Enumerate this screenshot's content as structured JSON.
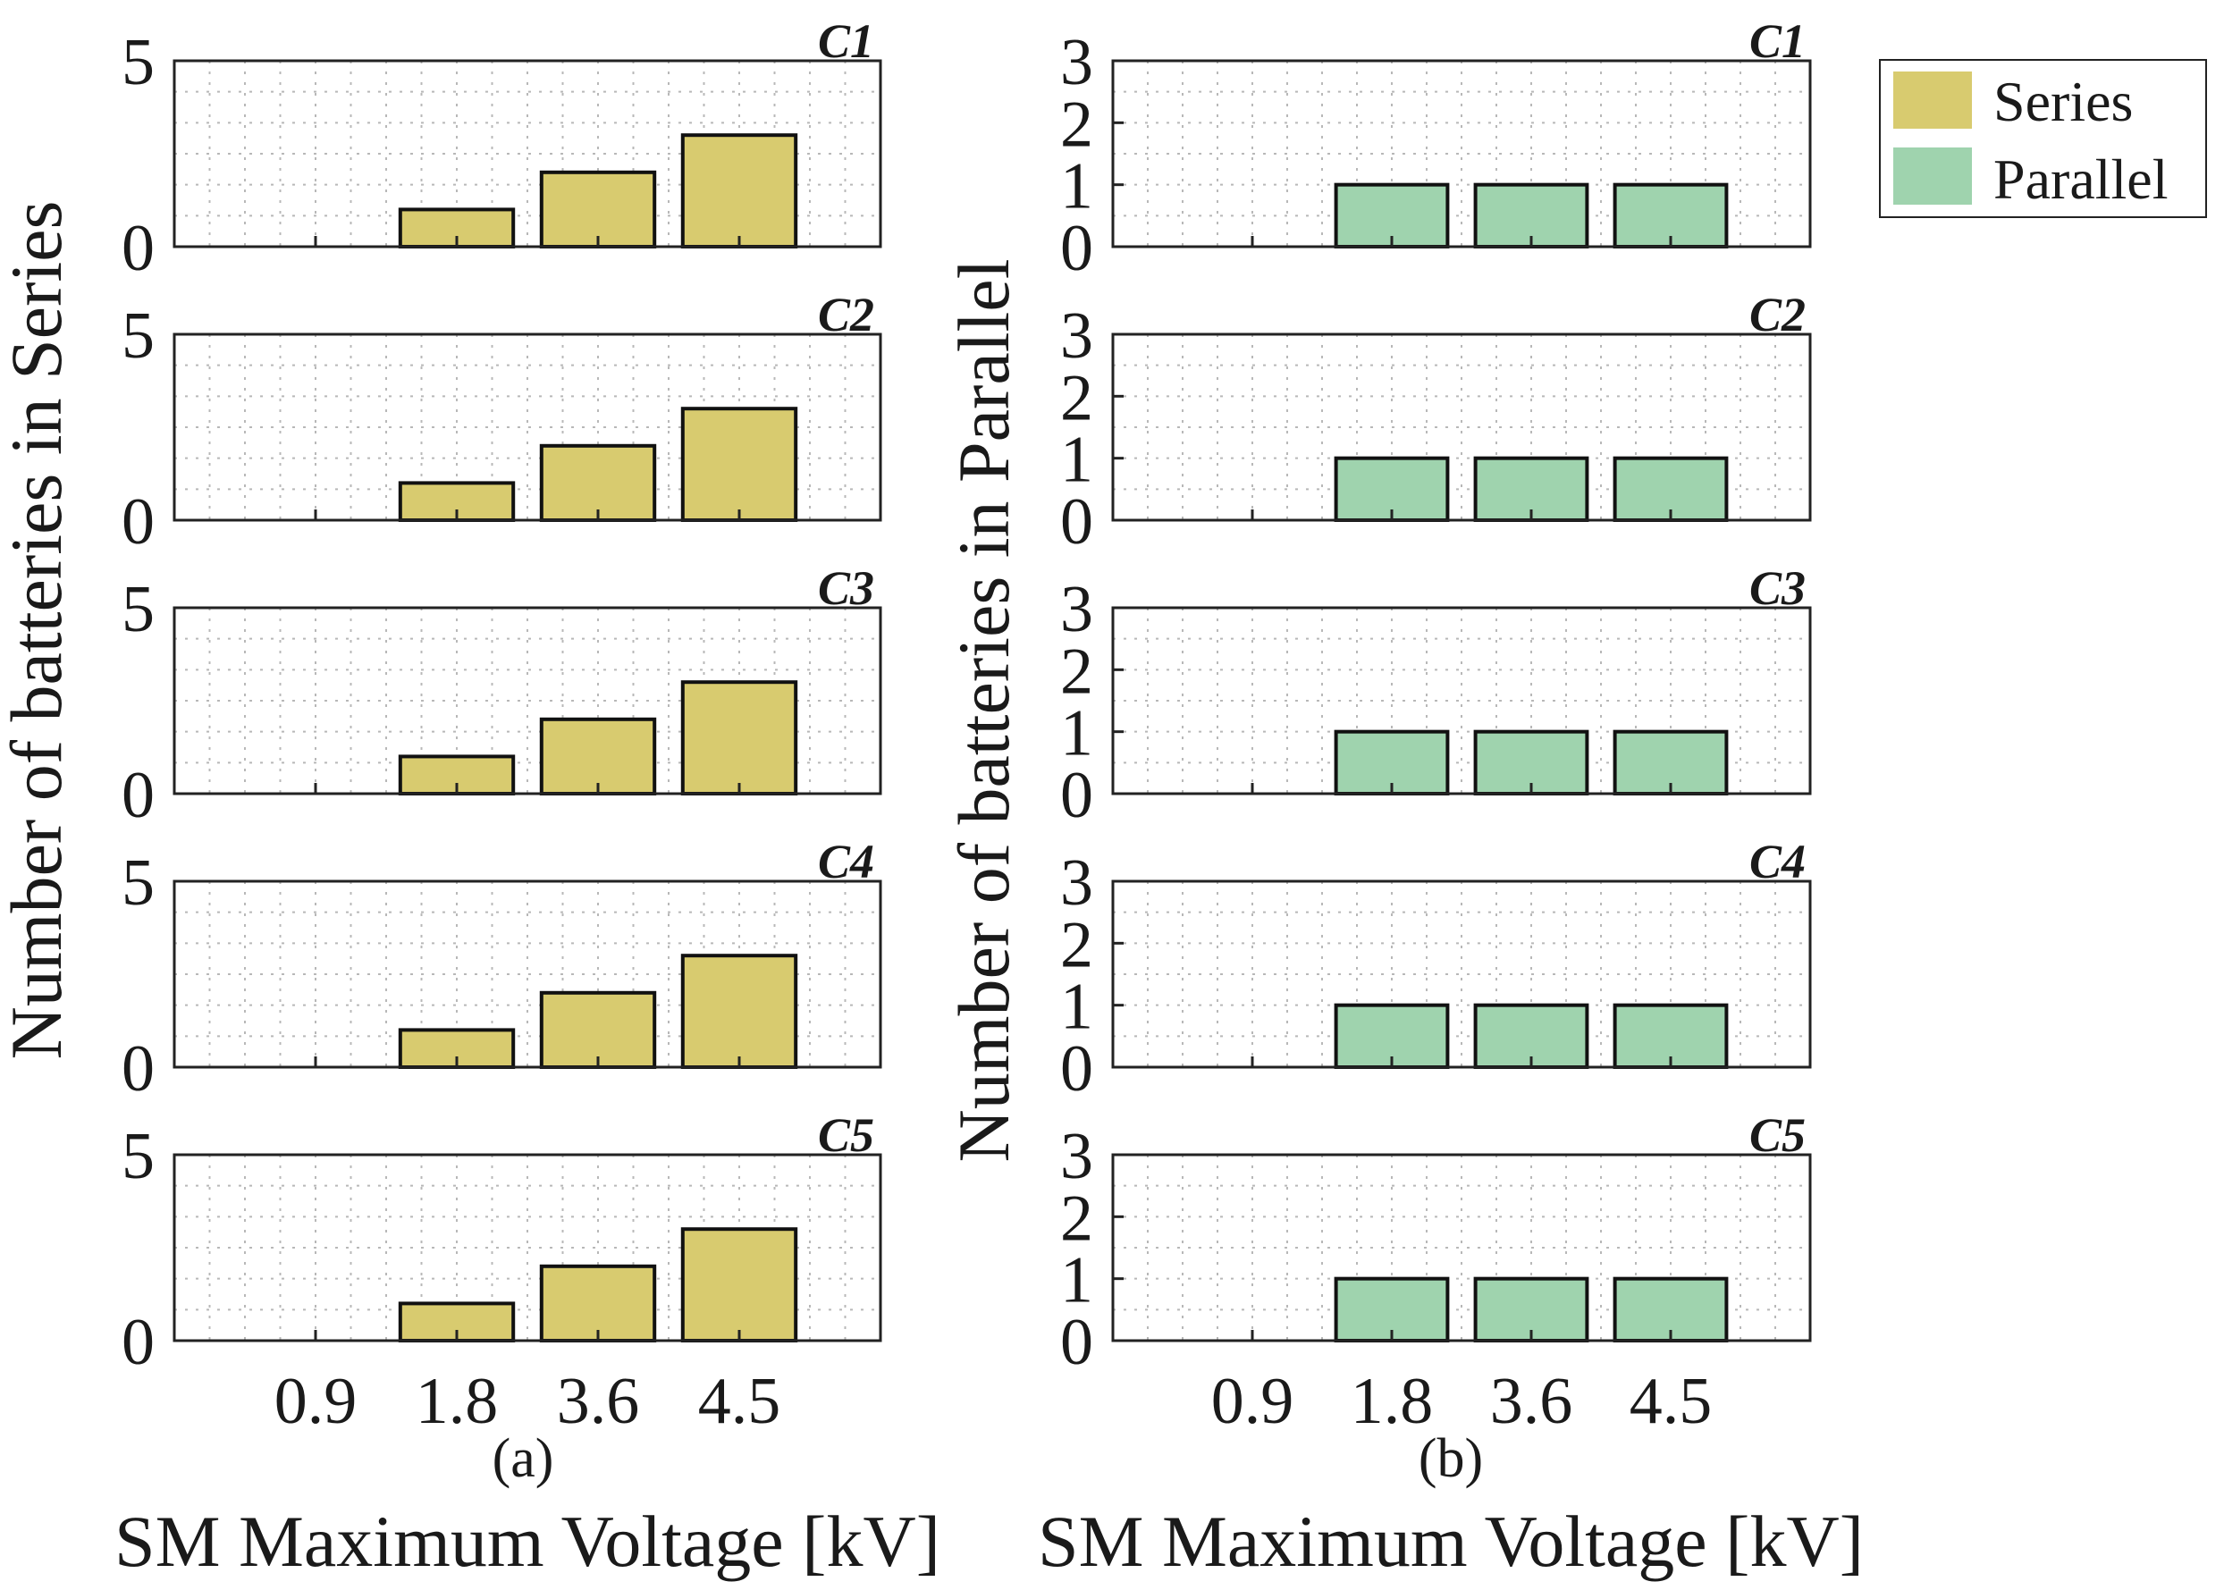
{
  "colors": {
    "series_fill": "#d8cb6f",
    "parallel_fill": "#9fd3ae",
    "bar_stroke": "#111111",
    "grid": "#b8b8b8",
    "axes": "#222222"
  },
  "legend": {
    "entries": [
      {
        "label": "Series",
        "color": "#d8cb6f"
      },
      {
        "label": "Parallel",
        "color": "#9fd3ae"
      }
    ]
  },
  "chart_data": [
    {
      "id": "a",
      "type": "bar",
      "subfigure_label": "(a)",
      "xlabel": "SM Maximum Voltage [kV]",
      "ylabel": "Number of batteries in Series",
      "categories": [
        "0.9",
        "1.8",
        "3.6",
        "4.5"
      ],
      "ylim": [
        0,
        5
      ],
      "yticks": [
        0,
        5
      ],
      "grid": true,
      "panels": [
        {
          "name": "C1",
          "values": [
            0,
            1,
            2,
            3
          ]
        },
        {
          "name": "C2",
          "values": [
            0,
            1,
            2,
            3
          ]
        },
        {
          "name": "C3",
          "values": [
            0,
            1,
            2,
            3
          ]
        },
        {
          "name": "C4",
          "values": [
            0,
            1,
            2,
            3
          ]
        },
        {
          "name": "C5",
          "values": [
            0,
            1,
            2,
            3
          ]
        }
      ]
    },
    {
      "id": "b",
      "type": "bar",
      "subfigure_label": "(b)",
      "xlabel": "SM Maximum Voltage [kV]",
      "ylabel": "Number of batteries in Parallel",
      "categories": [
        "0.9",
        "1.8",
        "3.6",
        "4.5"
      ],
      "ylim": [
        0,
        3
      ],
      "yticks": [
        0,
        1,
        2,
        3
      ],
      "grid": true,
      "panels": [
        {
          "name": "C1",
          "values": [
            0,
            1,
            1,
            1
          ]
        },
        {
          "name": "C2",
          "values": [
            0,
            1,
            1,
            1
          ]
        },
        {
          "name": "C3",
          "values": [
            0,
            1,
            1,
            1
          ]
        },
        {
          "name": "C4",
          "values": [
            0,
            1,
            1,
            1
          ]
        },
        {
          "name": "C5",
          "values": [
            0,
            1,
            1,
            1
          ]
        }
      ]
    }
  ]
}
